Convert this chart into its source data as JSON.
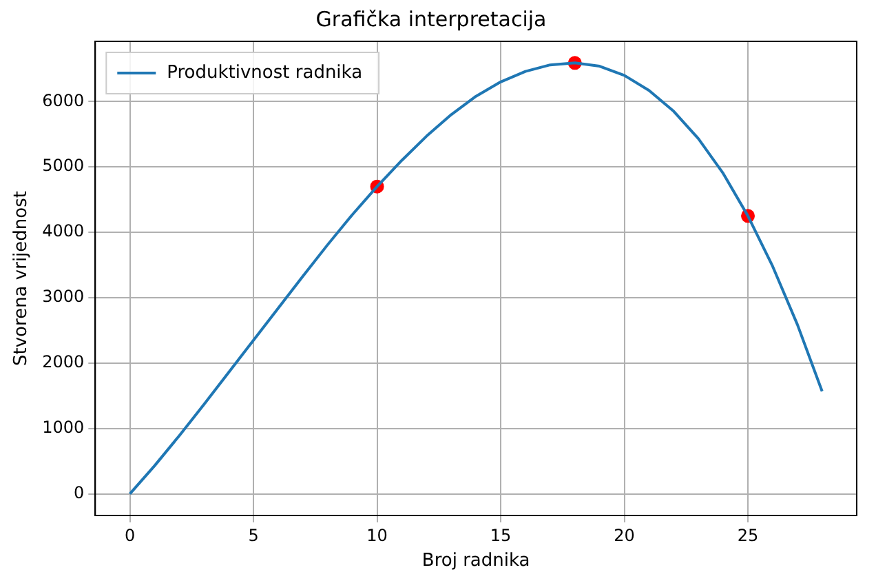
{
  "chart_data": {
    "type": "line",
    "title": "Grafička interpretacija",
    "xlabel": "Broj radnika",
    "ylabel": "Stvorena vrijednost",
    "xlim": [
      -1.4,
      29.4
    ],
    "ylim": [
      -330,
      6920
    ],
    "xticks": [
      0,
      5,
      10,
      15,
      20,
      25
    ],
    "yticks": [
      0,
      1000,
      2000,
      3000,
      4000,
      5000,
      6000
    ],
    "grid": true,
    "legend": "top left",
    "series": [
      {
        "name": "Produktivnost radnika",
        "color": "#1f77b4",
        "marker": "none",
        "x": [
          0,
          1,
          2,
          3,
          4,
          5,
          6,
          7,
          8,
          9,
          10,
          11,
          12,
          13,
          14,
          15,
          16,
          17,
          18,
          19,
          20,
          21,
          22,
          23,
          24,
          25,
          26,
          27,
          28
        ],
        "values": [
          0,
          430,
          890,
          1370,
          1860,
          2350,
          2840,
          3330,
          3810,
          4270,
          4700,
          5100,
          5470,
          5800,
          6080,
          6300,
          6460,
          6560,
          6590,
          6540,
          6400,
          6170,
          5850,
          5430,
          4900,
          4250,
          3480,
          2590,
          1570
        ]
      },
      {
        "type": "scatter",
        "color": "#ff0000",
        "marker": "circle",
        "x": [
          10,
          18,
          25
        ],
        "values": [
          4700,
          6590,
          4250
        ]
      }
    ]
  }
}
